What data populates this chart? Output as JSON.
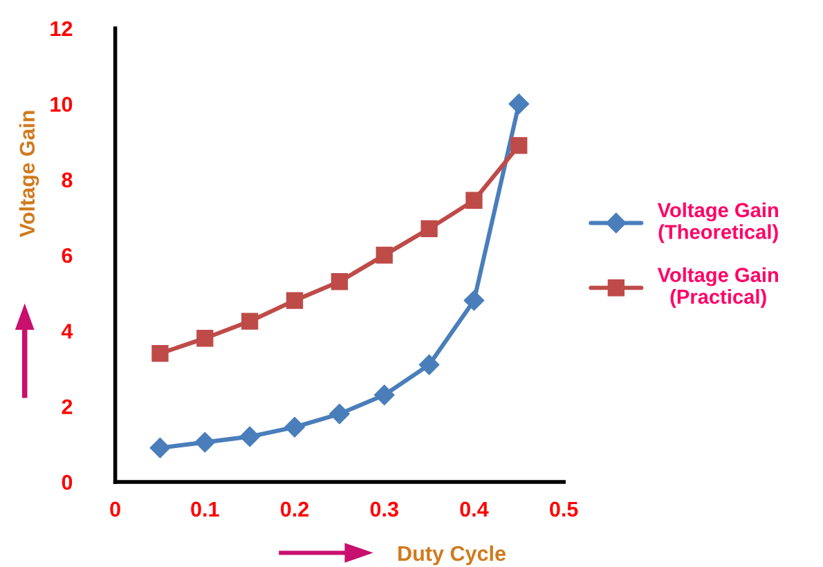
{
  "chart_data": {
    "type": "line",
    "xlabel": "Duty Cycle",
    "ylabel": "Voltage Gain",
    "x": [
      0.05,
      0.1,
      0.15,
      0.2,
      0.25,
      0.3,
      0.35,
      0.4,
      0.45
    ],
    "series": [
      {
        "name": "Voltage Gain\n(Theoretical)",
        "color": "#4a7ebb",
        "marker": "diamond",
        "values": [
          0.9,
          1.05,
          1.2,
          1.45,
          1.8,
          2.3,
          3.1,
          4.8,
          10.0
        ]
      },
      {
        "name": "Voltage Gain\n(Practical)",
        "color": "#be4b48",
        "marker": "square",
        "values": [
          3.4,
          3.8,
          4.25,
          4.8,
          5.3,
          6.0,
          6.7,
          7.45,
          8.9
        ]
      }
    ],
    "xlim": [
      0,
      0.5
    ],
    "xticks": [
      0,
      0.1,
      0.2,
      0.3,
      0.4,
      0.5
    ],
    "ylim": [
      0,
      12
    ],
    "yticks": [
      0,
      2,
      4,
      6,
      8,
      10,
      12
    ],
    "grid": false,
    "legend": "right",
    "line_style": "solid"
  }
}
